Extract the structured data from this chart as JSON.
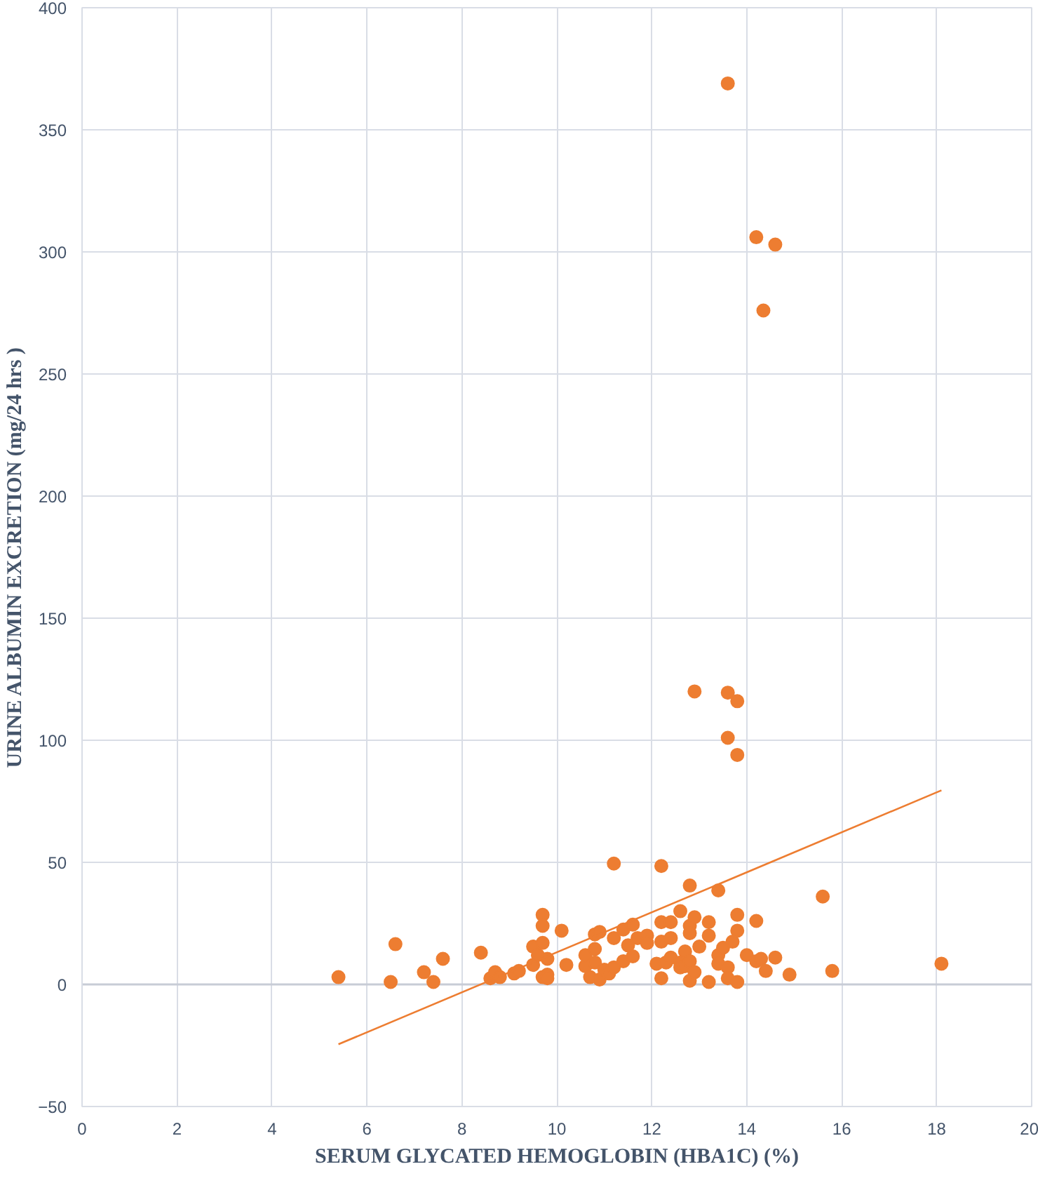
{
  "chart_data": {
    "type": "scatter",
    "xlabel": "SERUM GLYCATED HEMOGLOBIN (HBA1C) (%)",
    "ylabel": "URINE ALBUMIN EXCRETION (mg/24 hrs )",
    "xlim": [
      0,
      20
    ],
    "ylim": [
      -50,
      400
    ],
    "xticks": [
      0,
      2,
      4,
      6,
      8,
      10,
      12,
      14,
      16,
      18,
      20
    ],
    "yticks": [
      -50,
      0,
      50,
      100,
      150,
      200,
      250,
      300,
      350,
      400
    ],
    "grid": true,
    "marker": "circle",
    "series": [
      {
        "color": "#ed7d31",
        "x": [
          5.4,
          6.5,
          6.6,
          7.2,
          7.4,
          7.6,
          8.4,
          8.6,
          8.7,
          8.8,
          9.1,
          9.2,
          9.5,
          9.5,
          9.6,
          9.7,
          9.7,
          9.7,
          9.7,
          9.8,
          9.8,
          9.8,
          10.1,
          10.2,
          10.6,
          10.6,
          10.7,
          10.8,
          10.8,
          10.8,
          10.9,
          10.9,
          11.0,
          11.1,
          11.2,
          11.2,
          11.2,
          11.4,
          11.4,
          11.5,
          11.6,
          11.6,
          11.7,
          11.9,
          11.9,
          12.1,
          12.2,
          12.2,
          12.2,
          12.2,
          12.3,
          12.4,
          12.4,
          12.4,
          12.6,
          12.6,
          12.6,
          12.7,
          12.7,
          12.8,
          12.8,
          12.8,
          12.8,
          12.8,
          12.9,
          12.9,
          12.9,
          13.0,
          13.2,
          13.2,
          13.2,
          13.4,
          13.4,
          13.4,
          13.5,
          13.6,
          13.6,
          13.6,
          13.6,
          13.6,
          13.7,
          13.8,
          13.8,
          13.8,
          13.8,
          13.8,
          14.0,
          14.2,
          14.2,
          14.2,
          14.3,
          14.35,
          14.4,
          14.6,
          14.6,
          14.9,
          15.6,
          15.8,
          18.1
        ],
        "values": [
          3,
          1,
          16.5,
          5,
          1,
          10.5,
          13,
          2.5,
          5,
          3,
          4.5,
          5.5,
          15.5,
          8,
          12,
          28.5,
          24,
          17,
          3,
          10.5,
          4,
          2.5,
          22,
          8,
          7.5,
          12,
          3,
          20.5,
          14.5,
          9,
          21.5,
          2,
          6,
          4.5,
          7,
          19,
          49.5,
          22.5,
          9.5,
          16,
          24.5,
          11.5,
          19,
          20,
          17,
          8.5,
          48.5,
          25.5,
          17.5,
          2.5,
          9,
          25.5,
          19,
          11,
          30,
          9,
          7,
          7.5,
          13.5,
          40.5,
          24,
          21,
          9.5,
          1.5,
          120,
          27.5,
          5,
          15.5,
          25.5,
          20,
          1,
          38.5,
          12,
          8.5,
          15,
          369,
          119.5,
          101,
          7,
          2.5,
          17.5,
          116,
          94,
          28.5,
          22,
          1,
          12,
          306,
          26,
          9.5,
          10.5,
          276,
          5.5,
          303,
          11,
          4,
          36,
          5.5,
          8.5
        ]
      },
      {
        "type": "line",
        "color": "#ed7d31",
        "marker": "none",
        "line_style": "solid",
        "x": [
          5.4,
          18.1
        ],
        "values": [
          -24.5,
          79.5
        ]
      }
    ]
  }
}
